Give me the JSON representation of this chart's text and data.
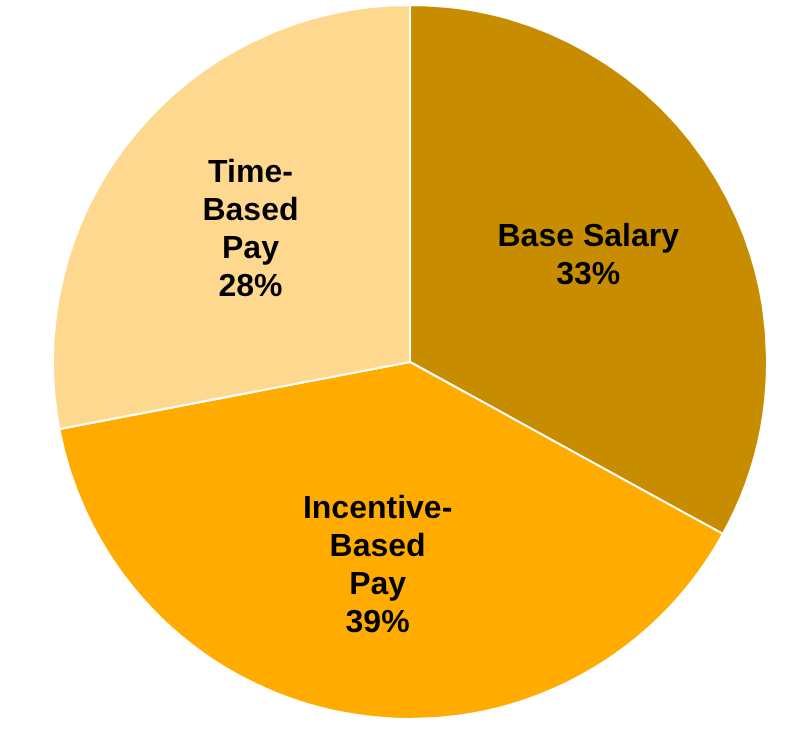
{
  "chart_data": {
    "type": "pie",
    "categories": [
      "Base Salary",
      "Incentive-Based Pay",
      "Time-Based Pay"
    ],
    "values": [
      33,
      39,
      28
    ],
    "value_labels": [
      "33%",
      "39%",
      "28%"
    ],
    "colors": [
      "#c88c00",
      "#ffab00",
      "#ffd88f"
    ],
    "legend": false
  }
}
